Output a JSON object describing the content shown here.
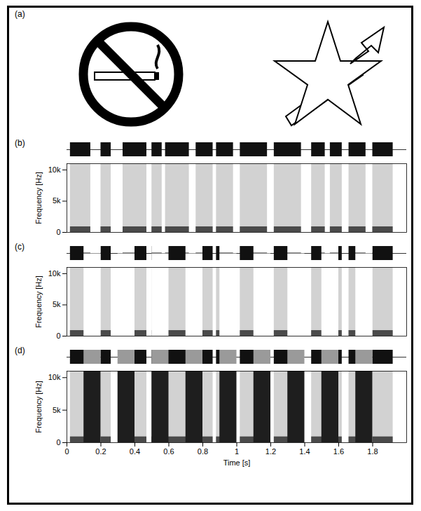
{
  "panel_a": {
    "label": "(a)"
  },
  "chart_data": [
    {
      "type": "spectrogram",
      "title": "(b)",
      "ylabel": "Frequency [Hz]",
      "xlim": [
        0,
        2
      ],
      "ylim": [
        0,
        11000
      ],
      "yticks": [
        0,
        {
          "value": 5000,
          "label": "5k"
        },
        {
          "value": 10000,
          "label": "10k"
        }
      ],
      "tick_labels": "y",
      "speech": [
        [
          0.02,
          0.14
        ],
        [
          0.2,
          0.26
        ],
        [
          0.33,
          0.47
        ],
        [
          0.5,
          0.56
        ],
        [
          0.58,
          0.72
        ],
        [
          0.76,
          0.86
        ],
        [
          0.88,
          0.98
        ],
        [
          1.02,
          1.18
        ],
        [
          1.22,
          1.38
        ],
        [
          1.44,
          1.52
        ],
        [
          1.55,
          1.62
        ],
        [
          1.66,
          1.76
        ],
        [
          1.8,
          1.92
        ]
      ],
      "low_band": [
        0,
        900
      ]
    },
    {
      "type": "spectrogram",
      "title": "(c)",
      "ylabel": "Frequency [Hz]",
      "xlim": [
        0,
        2
      ],
      "ylim": [
        0,
        11000
      ],
      "yticks": [
        0,
        {
          "value": 5000,
          "label": "5k"
        },
        {
          "value": 10000,
          "label": "10k"
        }
      ],
      "tick_labels": "y",
      "speech": [
        [
          0.02,
          0.14
        ],
        [
          0.2,
          0.26
        ],
        [
          0.33,
          0.47
        ],
        [
          0.5,
          0.56
        ],
        [
          0.58,
          0.72
        ],
        [
          0.76,
          0.86
        ],
        [
          0.88,
          0.98
        ],
        [
          1.02,
          1.18
        ],
        [
          1.22,
          1.38
        ],
        [
          1.44,
          1.52
        ],
        [
          1.55,
          1.62
        ],
        [
          1.66,
          1.76
        ],
        [
          1.8,
          1.92
        ]
      ],
      "low_band": [
        0,
        900
      ],
      "gaps": [
        [
          0.1,
          0.2
        ],
        [
          0.3,
          0.4
        ],
        [
          0.5,
          0.6
        ],
        [
          0.7,
          0.8
        ],
        [
          0.9,
          1.0
        ],
        [
          1.1,
          1.2
        ],
        [
          1.3,
          1.4
        ],
        [
          1.5,
          1.6
        ],
        [
          1.7,
          1.8
        ]
      ]
    },
    {
      "type": "spectrogram",
      "title": "(d)",
      "xlabel": "Time [s]",
      "ylabel": "Frequency [Hz]",
      "xlim": [
        0,
        2
      ],
      "ylim": [
        0,
        11000
      ],
      "xticks": [
        0,
        0.2,
        0.4,
        0.6,
        0.8,
        1,
        1.2,
        1.4,
        1.6,
        1.8
      ],
      "yticks": [
        0,
        {
          "value": 5000,
          "label": "5k"
        },
        {
          "value": 10000,
          "label": "10k"
        }
      ],
      "speech": [
        [
          0.02,
          0.14
        ],
        [
          0.2,
          0.26
        ],
        [
          0.33,
          0.47
        ],
        [
          0.5,
          0.56
        ],
        [
          0.58,
          0.72
        ],
        [
          0.76,
          0.86
        ],
        [
          0.88,
          0.98
        ],
        [
          1.02,
          1.18
        ],
        [
          1.22,
          1.38
        ],
        [
          1.44,
          1.52
        ],
        [
          1.55,
          1.62
        ],
        [
          1.66,
          1.76
        ],
        [
          1.8,
          1.92
        ]
      ],
      "low_band": [
        0,
        900
      ],
      "noise": [
        [
          0.1,
          0.2
        ],
        [
          0.3,
          0.4
        ],
        [
          0.5,
          0.6
        ],
        [
          0.7,
          0.8
        ],
        [
          0.9,
          1.0
        ],
        [
          1.1,
          1.2
        ],
        [
          1.3,
          1.4
        ],
        [
          1.5,
          1.6
        ],
        [
          1.7,
          1.8
        ]
      ]
    }
  ]
}
